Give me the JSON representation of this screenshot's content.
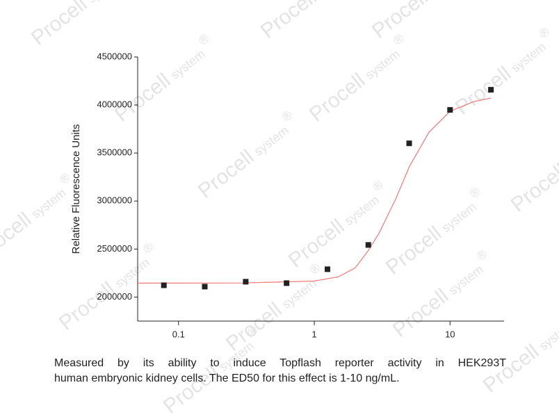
{
  "chart_data": {
    "type": "scatter",
    "y_label": "Relative Fluorescence Units",
    "x": [
      0.078,
      0.156,
      0.3125,
      0.625,
      1.25,
      2.5,
      5,
      10,
      20
    ],
    "values": [
      2123000,
      2109000,
      2160000,
      2145000,
      2290000,
      2543000,
      3601000,
      3949000,
      4159000
    ],
    "color": "#222222",
    "fit": {
      "color": "#f08080",
      "x": [
        0.05,
        0.3,
        1,
        1.5,
        2,
        2.5,
        3,
        4,
        5,
        7,
        10,
        15,
        20
      ],
      "values": [
        2145000,
        2147000,
        2167000,
        2210000,
        2304000,
        2485000,
        2666000,
        3029000,
        3355000,
        3717000,
        3935000,
        4036000,
        4072000
      ]
    },
    "xscale": "log",
    "xlim": [
      0.05,
      25
    ],
    "ylim": [
      1750000,
      4500000
    ],
    "xticks": [
      0.1,
      1,
      10
    ],
    "yticks": [
      2000000,
      2500000,
      3000000,
      3500000,
      4000000,
      4500000
    ]
  },
  "caption": [
    "Measured by its ability to induce Topflash reporter activity in HEK293T",
    "human embryonic kidney cells. The ED50 for this effect is 1-10 ng/mL."
  ],
  "watermark": {
    "brand": "Procell",
    "sub": "system",
    "mark": "®"
  }
}
